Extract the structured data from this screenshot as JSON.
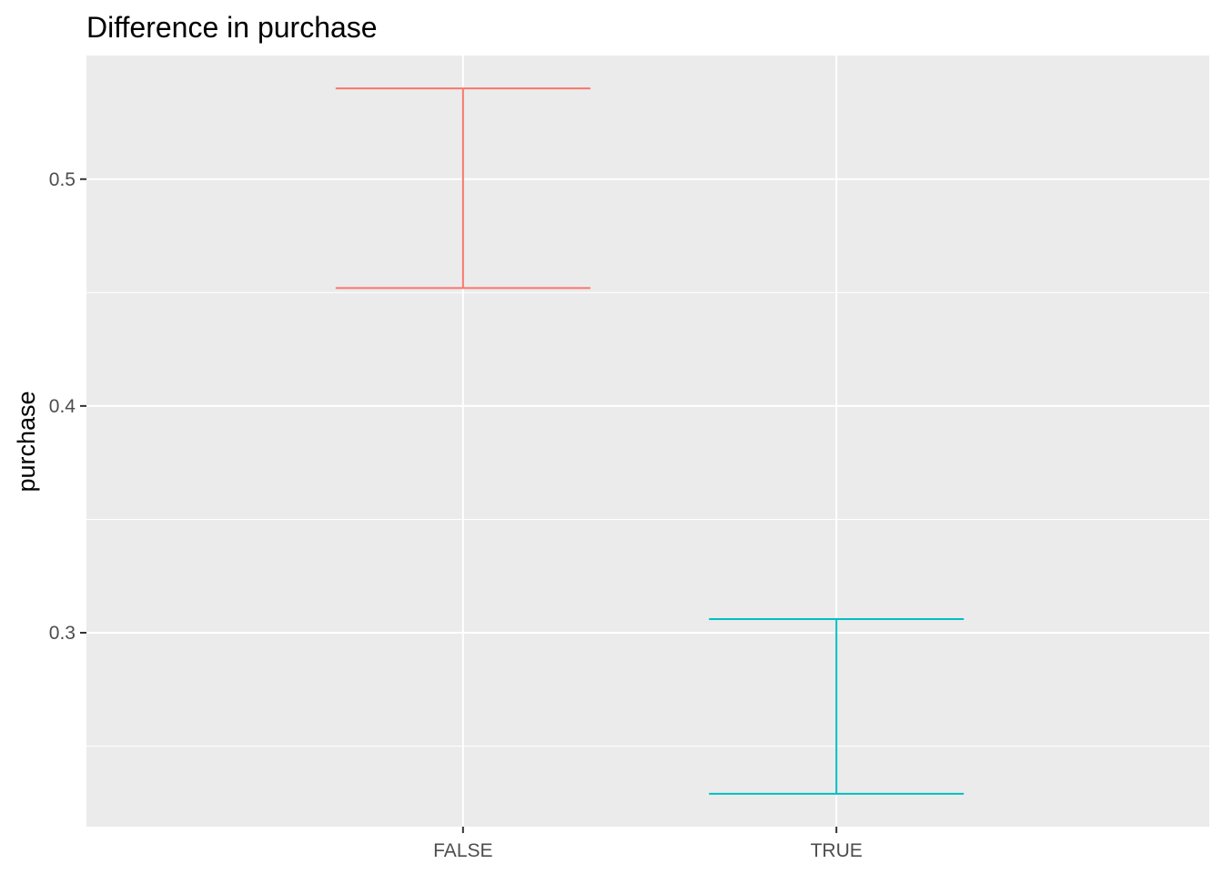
{
  "chart_data": {
    "type": "errorbar",
    "title": "Difference in purchase",
    "xlabel": "",
    "ylabel": "purchase",
    "categories": [
      "FALSE",
      "TRUE"
    ],
    "series": [
      {
        "category": "FALSE",
        "ymin": 0.452,
        "ymax": 0.54,
        "color": "#F8766D"
      },
      {
        "category": "TRUE",
        "ymin": 0.229,
        "ymax": 0.306,
        "color": "#00BFC4"
      }
    ],
    "ylim": [
      0.2145,
      0.5545
    ],
    "y_ticks": [
      0.3,
      0.4,
      0.5
    ],
    "y_tick_labels": [
      "0.3",
      "0.4",
      "0.5"
    ],
    "y_minor_ticks": [
      0.25,
      0.35,
      0.45
    ],
    "grid": true,
    "legend": "none",
    "panel_background": "#EBEBEB",
    "grid_color": "#FFFFFF"
  }
}
